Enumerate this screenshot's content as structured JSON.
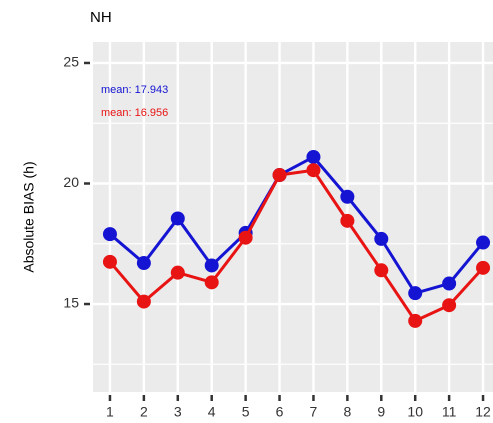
{
  "chart_data": {
    "type": "line",
    "title": "NH",
    "y_label": "Absolute BIAS (h)",
    "x": [
      1,
      2,
      3,
      4,
      5,
      6,
      7,
      8,
      9,
      10,
      11,
      12
    ],
    "xlim": [
      0.5,
      12.5
    ],
    "xticks": [
      1,
      2,
      3,
      4,
      5,
      6,
      7,
      8,
      9,
      10,
      11,
      12
    ],
    "ylim": [
      11.35,
      25.87
    ],
    "yticks": [
      15,
      20,
      25
    ],
    "yminor": [
      12.5,
      17.5,
      22.5
    ],
    "grid": true,
    "series": [
      {
        "color": "#1414d2",
        "values": [
          17.9,
          16.7,
          18.55,
          16.6,
          17.95,
          20.35,
          21.1,
          19.45,
          17.7,
          15.45,
          15.85,
          17.55
        ]
      },
      {
        "color": "#e81414",
        "values": [
          16.75,
          15.1,
          16.3,
          15.9,
          17.75,
          20.35,
          20.55,
          18.45,
          16.4,
          14.3,
          14.95,
          16.5
        ]
      }
    ],
    "annotations": [
      {
        "text": "mean: 17.943",
        "color": "#1414d2"
      },
      {
        "text": "mean: 16.956",
        "color": "#e81414"
      }
    ]
  }
}
